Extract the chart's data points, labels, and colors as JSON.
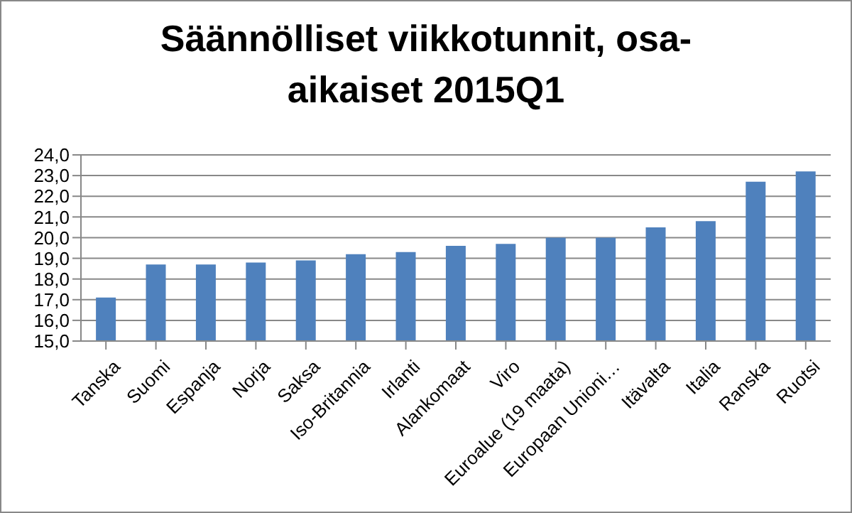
{
  "chart_data": {
    "type": "bar",
    "title": "Säännölliset viikkotunnit, osa-aikaiset 2015Q1",
    "categories": [
      "Tanska",
      "Suomi",
      "Espanja",
      "Norja",
      "Saksa",
      "Iso-Britannia",
      "Irlanti",
      "Alankomaat",
      "Viro",
      "Euroalue (19 maata)",
      "Europaan Unioni…",
      "Itävalta",
      "Italia",
      "Ranska",
      "Ruotsi"
    ],
    "values": [
      17.1,
      18.7,
      18.7,
      18.8,
      18.9,
      19.2,
      19.3,
      19.6,
      19.7,
      20.0,
      20.0,
      20.5,
      20.8,
      22.7,
      23.2
    ],
    "color": "#4f81bd",
    "ylim": [
      15,
      24
    ],
    "yticks": [
      {
        "value": 15,
        "label": "15,0"
      },
      {
        "value": 16,
        "label": "16,0"
      },
      {
        "value": 17,
        "label": "17,0"
      },
      {
        "value": 18,
        "label": "18,0"
      },
      {
        "value": 19,
        "label": "19,0"
      },
      {
        "value": 20,
        "label": "20,0"
      },
      {
        "value": 21,
        "label": "21,0"
      },
      {
        "value": 22,
        "label": "22,0"
      },
      {
        "value": 23,
        "label": "23,0"
      },
      {
        "value": 24,
        "label": "24,0"
      }
    ],
    "grid": "y",
    "legend": false
  }
}
